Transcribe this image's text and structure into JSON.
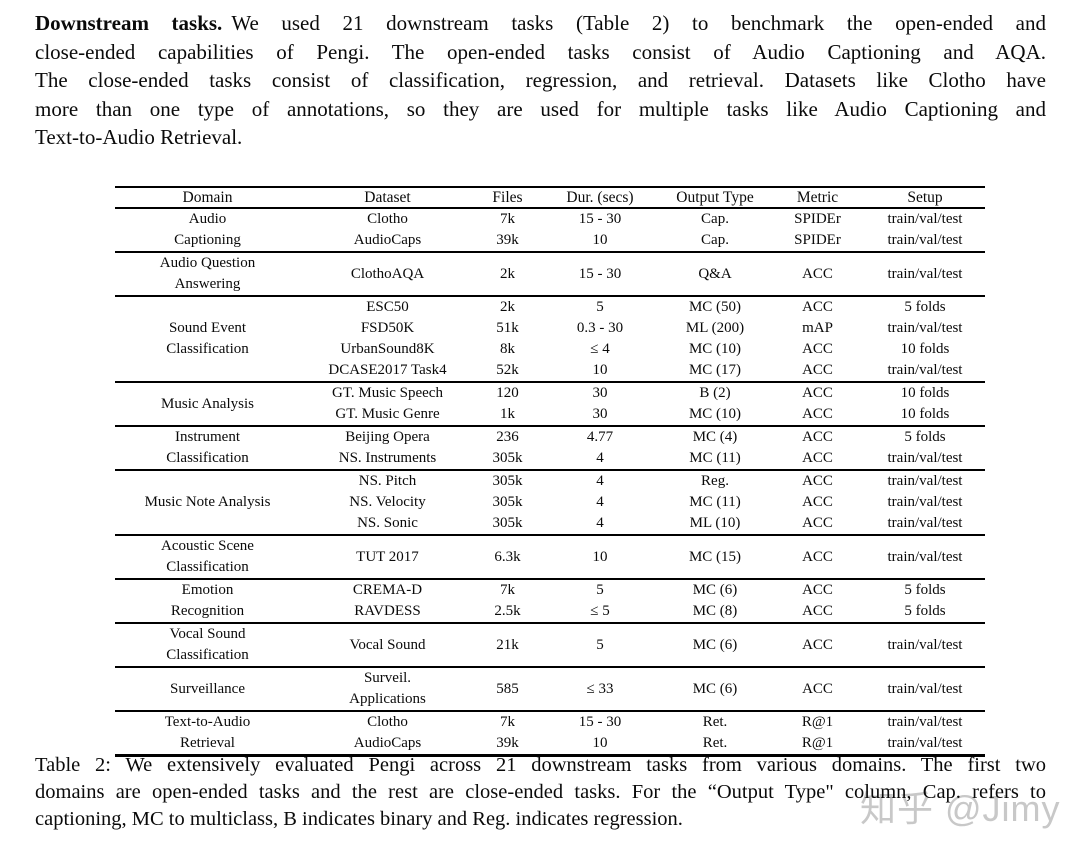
{
  "paragraph": {
    "lead": "Downstream tasks.",
    "lines": [
      "We used 21 downstream tasks (Table 2) to benchmark the open-ended and",
      "close-ended capabilities of Pengi.  The open-ended tasks consist of Audio Captioning and AQA.",
      "The close-ended tasks consist of classification, regression, and retrieval. Datasets like Clotho have",
      "more than one type of annotations, so they are used for multiple tasks like Audio Captioning and",
      "Text-to-Audio Retrieval."
    ]
  },
  "table": {
    "headers": [
      "Domain",
      "Dataset",
      "Files",
      "Dur. (secs)",
      "Output Type",
      "Metric",
      "Setup"
    ],
    "groups": [
      {
        "domain_lines": [
          "Audio",
          "Captioning"
        ],
        "rows": [
          [
            "Clotho",
            "7k",
            "15 - 30",
            "Cap.",
            "SPIDEr",
            "train/val/test"
          ],
          [
            "AudioCaps",
            "39k",
            "10",
            "Cap.",
            "SPIDEr",
            "train/val/test"
          ]
        ]
      },
      {
        "domain_lines": [
          "Audio Question",
          "Answering"
        ],
        "rows": [
          [
            "ClothoAQA",
            "2k",
            "15 - 30",
            "Q&A",
            "ACC",
            "train/val/test"
          ]
        ]
      },
      {
        "domain_lines": [
          "Sound Event",
          "Classification"
        ],
        "rows": [
          [
            "ESC50",
            "2k",
            "5",
            "MC (50)",
            "ACC",
            "5 folds"
          ],
          [
            "FSD50K",
            "51k",
            "0.3 - 30",
            "ML (200)",
            "mAP",
            "train/val/test"
          ],
          [
            "UrbanSound8K",
            "8k",
            "≤ 4",
            "MC (10)",
            "ACC",
            "10 folds"
          ],
          [
            "DCASE2017 Task4",
            "52k",
            "10",
            "MC (17)",
            "ACC",
            "train/val/test"
          ]
        ]
      },
      {
        "domain_lines": [
          "Music Analysis"
        ],
        "rows": [
          [
            "GT. Music Speech",
            "120",
            "30",
            "B (2)",
            "ACC",
            "10 folds"
          ],
          [
            "GT. Music Genre",
            "1k",
            "30",
            "MC (10)",
            "ACC",
            "10 folds"
          ]
        ]
      },
      {
        "domain_lines": [
          "Instrument",
          "Classification"
        ],
        "rows": [
          [
            "Beijing Opera",
            "236",
            "4.77",
            "MC (4)",
            "ACC",
            "5 folds"
          ],
          [
            "NS. Instruments",
            "305k",
            "4",
            "MC (11)",
            "ACC",
            "train/val/test"
          ]
        ]
      },
      {
        "domain_lines": [
          "Music Note Analysis"
        ],
        "rows": [
          [
            "NS. Pitch",
            "305k",
            "4",
            "Reg.",
            "ACC",
            "train/val/test"
          ],
          [
            "NS. Velocity",
            "305k",
            "4",
            "MC (11)",
            "ACC",
            "train/val/test"
          ],
          [
            "NS. Sonic",
            "305k",
            "4",
            "ML (10)",
            "ACC",
            "train/val/test"
          ]
        ]
      },
      {
        "domain_lines": [
          "Acoustic Scene",
          "Classification"
        ],
        "rows": [
          [
            "TUT 2017",
            "6.3k",
            "10",
            "MC (15)",
            "ACC",
            "train/val/test"
          ]
        ]
      },
      {
        "domain_lines": [
          "Emotion",
          "Recognition"
        ],
        "rows": [
          [
            "CREMA-D",
            "7k",
            "5",
            "MC (6)",
            "ACC",
            "5 folds"
          ],
          [
            "RAVDESS",
            "2.5k",
            "≤ 5",
            "MC (8)",
            "ACC",
            "5 folds"
          ]
        ]
      },
      {
        "domain_lines": [
          "Vocal Sound",
          "Classification"
        ],
        "rows": [
          [
            "Vocal Sound",
            "21k",
            "5",
            "MC (6)",
            "ACC",
            "train/val/test"
          ]
        ]
      },
      {
        "domain_lines": [
          "Surveillance"
        ],
        "rows": [
          [
            [
              "Surveil.",
              "Applications"
            ],
            "585",
            "≤ 33",
            "MC (6)",
            "ACC",
            "train/val/test"
          ]
        ]
      },
      {
        "domain_lines": [
          "Text-to-Audio",
          "Retrieval"
        ],
        "rows": [
          [
            "Clotho",
            "7k",
            "15 - 30",
            "Ret.",
            "R@1",
            "train/val/test"
          ],
          [
            "AudioCaps",
            "39k",
            "10",
            "Ret.",
            "R@1",
            "train/val/test"
          ]
        ]
      }
    ]
  },
  "caption": {
    "lines": [
      "Table 2:  We extensively evaluated Pengi across 21 downstream tasks from various domains.  The first two",
      "domains are open-ended tasks and the rest are close-ended tasks. For the “Output Type\" column, Cap. refers to",
      "captioning, MC to multiclass, B indicates binary and Reg. indicates regression."
    ]
  },
  "watermark": {
    "text": "知乎 @Jimy",
    "color": "#c8c8c8"
  },
  "colors": {
    "background": "#ffffff",
    "text": "#0a0a0a",
    "rule": "#000000"
  }
}
